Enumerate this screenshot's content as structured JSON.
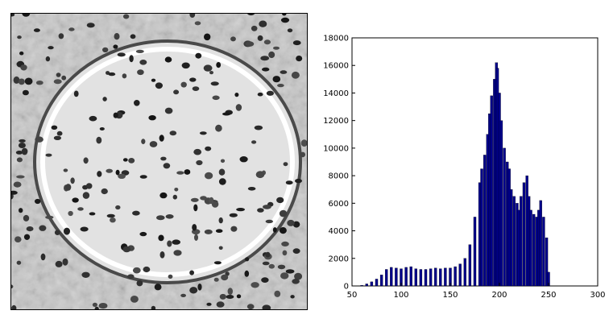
{
  "micrograph": {
    "description_icon": "grayscale-tissue-micrograph-icon"
  },
  "chart_data": {
    "type": "bar",
    "title": "",
    "xlabel": "",
    "ylabel": "",
    "xlim": [
      50,
      300
    ],
    "ylim": [
      0,
      18000
    ],
    "x_ticks": [
      50,
      100,
      150,
      200,
      250,
      300
    ],
    "y_ticks": [
      0,
      2000,
      4000,
      6000,
      8000,
      10000,
      12000,
      14000,
      16000,
      18000
    ],
    "bar_color": "#00008b",
    "edge_color": "#000000",
    "grid": false,
    "legend": "none",
    "series": [
      {
        "x": [
          55,
          60,
          65,
          70,
          75,
          80,
          85,
          90,
          95,
          100,
          105,
          110,
          115,
          120,
          125,
          130,
          135,
          140,
          145,
          150,
          155,
          160,
          165,
          170,
          175,
          180,
          182,
          185,
          188,
          190,
          192,
          195,
          197,
          198,
          200,
          202,
          205,
          208,
          210,
          212,
          215,
          218,
          220,
          222,
          225,
          228,
          230,
          232,
          235,
          238,
          240,
          242,
          245,
          248,
          250
        ],
        "values": [
          0,
          50,
          150,
          300,
          500,
          800,
          1200,
          1350,
          1300,
          1250,
          1350,
          1400,
          1250,
          1200,
          1200,
          1250,
          1300,
          1250,
          1300,
          1300,
          1400,
          1600,
          2000,
          3000,
          5000,
          7500,
          8500,
          9500,
          11000,
          12500,
          13800,
          15000,
          16200,
          15800,
          14000,
          12000,
          10000,
          9000,
          8500,
          7000,
          6500,
          6000,
          5500,
          6500,
          7500,
          8000,
          6500,
          5500,
          5200,
          5000,
          5500,
          6200,
          5000,
          3500,
          1000
        ]
      }
    ]
  }
}
